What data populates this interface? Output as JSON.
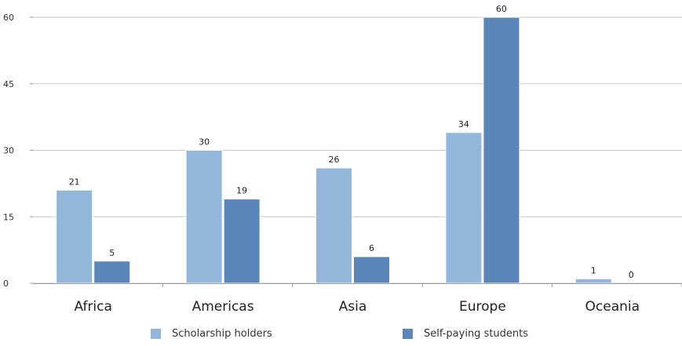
{
  "chart_data": {
    "type": "bar",
    "categories": [
      "Africa",
      "Americas",
      "Asia",
      "Europe",
      "Oceania"
    ],
    "series": [
      {
        "name": "Scholarship holders",
        "values": [
          21,
          30,
          26,
          34,
          1
        ],
        "color": "#93b6db"
      },
      {
        "name": "Self-paying students",
        "values": [
          5,
          19,
          6,
          60,
          0
        ],
        "color": "#5b86ba"
      }
    ],
    "ylim": [
      0,
      60
    ],
    "yticks": [
      "0",
      "15",
      "30",
      "45",
      "60"
    ],
    "grid": true,
    "legend_position": "bottom",
    "title": "",
    "xlabel": "",
    "ylabel": ""
  }
}
